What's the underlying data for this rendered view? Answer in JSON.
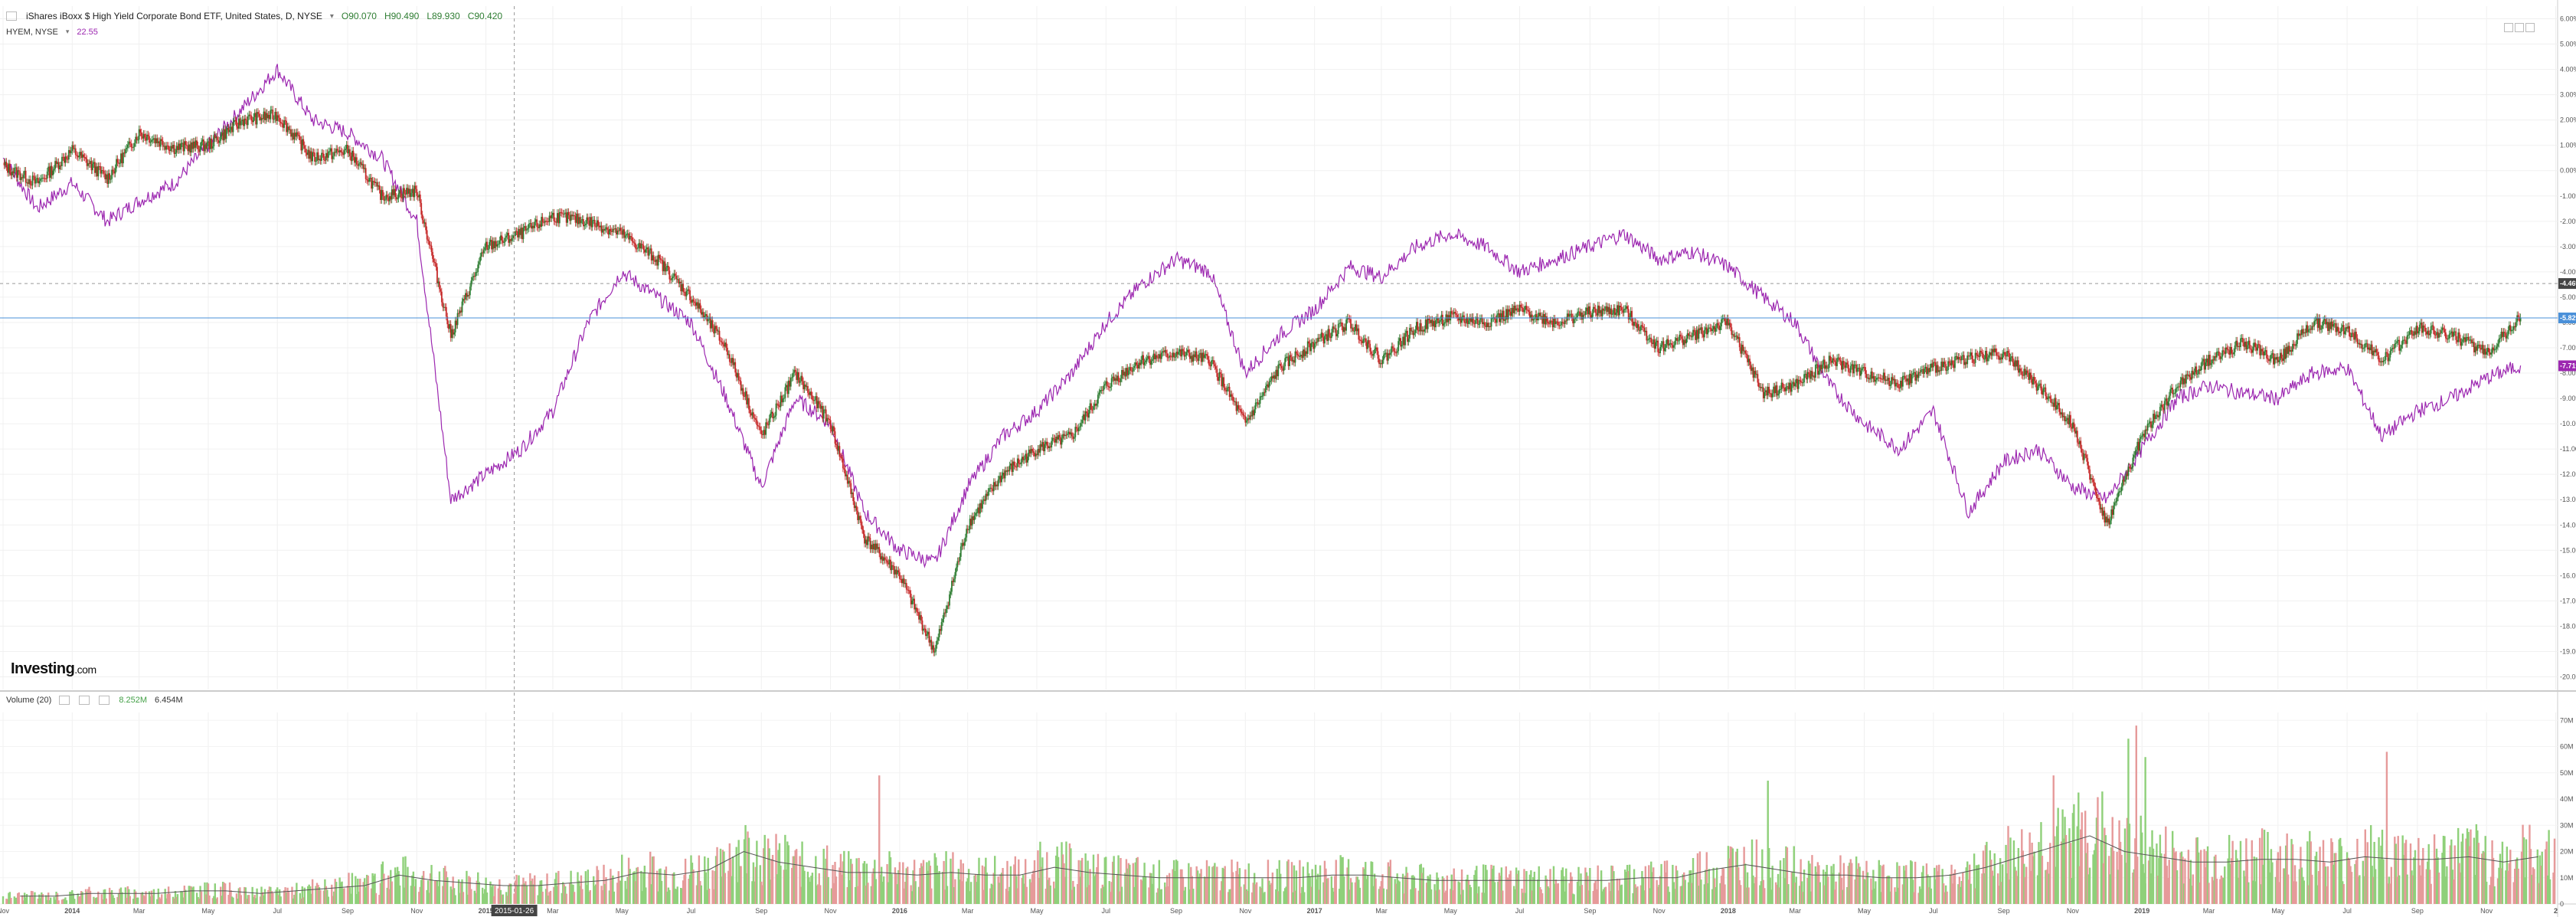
{
  "header": {
    "symbol": "iShares iBoxx $ High Yield Corporate Bond ETF, United States, D, NYSE",
    "open": "O90.070",
    "high": "H90.490",
    "low": "L89.930",
    "close": "C90.420",
    "compare_symbol": "HYEM, NYSE",
    "compare_value": "22.55"
  },
  "volume_legend": {
    "label": "Volume (20)",
    "value1": "8.252M",
    "value2": "6.454M"
  },
  "logo": {
    "main": "Investing",
    "suffix": ".com"
  },
  "crosshair_date": "2015-01-26",
  "price_badges": {
    "crosshair": "-4.46%",
    "blue": "-5.82%",
    "purple": "-7.71%"
  },
  "colors": {
    "up": "#2e7d32",
    "down": "#c62828",
    "compare": "#9c27b0",
    "blue_line": "#4a90d9",
    "vol_up": "#8fd07a",
    "vol_down": "#e69a9a",
    "vol_ma": "#555555"
  },
  "chart_data": {
    "type": "line",
    "title": "iShares iBoxx $ High Yield Corporate Bond ETF, United States, D, NYSE",
    "y_axis_unit": "%",
    "ylim": [
      -20.5,
      6.5
    ],
    "y_ticks": [
      "6.00%",
      "5.00%",
      "4.00%",
      "3.00%",
      "2.00%",
      "1.00%",
      "0.00%",
      "-1.00%",
      "-2.00%",
      "-3.00%",
      "-4.00%",
      "-5.00%",
      "-6.00%",
      "-7.00%",
      "-8.00%",
      "-9.00%",
      "-10.00%",
      "-11.00%",
      "-12.00%",
      "-13.00%",
      "-14.00%",
      "-15.00%",
      "-16.00%",
      "-17.00%",
      "-18.00%",
      "-19.00%",
      "-20.00%"
    ],
    "x_ticks": [
      "Nov",
      "2014",
      "Mar",
      "May",
      "Jul",
      "Sep",
      "Nov",
      "2015",
      "Mar",
      "May",
      "Jul",
      "Sep",
      "Nov",
      "2016",
      "Mar",
      "May",
      "Jul",
      "Sep",
      "Nov",
      "2017",
      "Mar",
      "May",
      "Jul",
      "Sep",
      "Nov",
      "2018",
      "Mar",
      "May",
      "Jul",
      "Sep",
      "Nov",
      "2019",
      "Mar",
      "May",
      "Jul",
      "Sep",
      "Nov",
      "2"
    ],
    "x_range": [
      "2013-11-01",
      "2019-12-31"
    ],
    "series": [
      {
        "name": "HYG",
        "style": "candles",
        "points": [
          [
            "2013-11-01",
            0.2
          ],
          [
            "2013-12-01",
            -0.5
          ],
          [
            "2014-01-01",
            0.8
          ],
          [
            "2014-02-01",
            -0.3
          ],
          [
            "2014-03-01",
            1.5
          ],
          [
            "2014-04-01",
            0.9
          ],
          [
            "2014-05-01",
            1.0
          ],
          [
            "2014-06-01",
            2.0
          ],
          [
            "2014-07-01",
            2.2
          ],
          [
            "2014-08-01",
            0.5
          ],
          [
            "2014-09-01",
            0.8
          ],
          [
            "2014-10-01",
            -1.0
          ],
          [
            "2014-11-01",
            -0.8
          ],
          [
            "2014-12-01",
            -6.5
          ],
          [
            "2015-01-01",
            -3.0
          ],
          [
            "2015-02-01",
            -2.5
          ],
          [
            "2015-03-01",
            -1.8
          ],
          [
            "2015-04-01",
            -2.0
          ],
          [
            "2015-05-01",
            -2.5
          ],
          [
            "2015-06-01",
            -3.5
          ],
          [
            "2015-07-01",
            -5.0
          ],
          [
            "2015-08-01",
            -7.0
          ],
          [
            "2015-09-01",
            -10.5
          ],
          [
            "2015-10-01",
            -8.0
          ],
          [
            "2015-11-01",
            -10.0
          ],
          [
            "2015-12-01",
            -14.5
          ],
          [
            "2016-01-01",
            -16.0
          ],
          [
            "2016-02-01",
            -19.0
          ],
          [
            "2016-03-01",
            -14.0
          ],
          [
            "2016-04-01",
            -12.0
          ],
          [
            "2016-05-01",
            -11.0
          ],
          [
            "2016-06-01",
            -10.5
          ],
          [
            "2016-07-01",
            -8.5
          ],
          [
            "2016-08-01",
            -7.5
          ],
          [
            "2016-09-01",
            -7.2
          ],
          [
            "2016-10-01",
            -7.5
          ],
          [
            "2016-11-01",
            -10.0
          ],
          [
            "2016-12-01",
            -7.8
          ],
          [
            "2017-01-01",
            -6.8
          ],
          [
            "2017-02-01",
            -6.0
          ],
          [
            "2017-03-01",
            -7.5
          ],
          [
            "2017-04-01",
            -6.2
          ],
          [
            "2017-05-01",
            -5.8
          ],
          [
            "2017-06-01",
            -6.0
          ],
          [
            "2017-07-01",
            -5.5
          ],
          [
            "2017-08-01",
            -6.0
          ],
          [
            "2017-09-01",
            -5.6
          ],
          [
            "2017-10-01",
            -5.5
          ],
          [
            "2017-11-01",
            -7.0
          ],
          [
            "2017-12-01",
            -6.5
          ],
          [
            "2018-01-01",
            -6.0
          ],
          [
            "2018-02-01",
            -8.8
          ],
          [
            "2018-03-01",
            -8.5
          ],
          [
            "2018-04-01",
            -7.5
          ],
          [
            "2018-05-01",
            -8.0
          ],
          [
            "2018-06-01",
            -8.4
          ],
          [
            "2018-07-01",
            -7.8
          ],
          [
            "2018-08-01",
            -7.4
          ],
          [
            "2018-09-01",
            -7.2
          ],
          [
            "2018-10-01",
            -8.5
          ],
          [
            "2018-11-01",
            -10.0
          ],
          [
            "2018-12-01",
            -14.0
          ],
          [
            "2019-01-01",
            -10.5
          ],
          [
            "2019-02-01",
            -8.5
          ],
          [
            "2019-03-01",
            -7.5
          ],
          [
            "2019-04-01",
            -6.8
          ],
          [
            "2019-05-01",
            -7.5
          ],
          [
            "2019-06-01",
            -6.0
          ],
          [
            "2019-07-01",
            -6.3
          ],
          [
            "2019-08-01",
            -7.5
          ],
          [
            "2019-09-01",
            -6.2
          ],
          [
            "2019-10-01",
            -6.5
          ],
          [
            "2019-11-01",
            -7.2
          ],
          [
            "2019-12-01",
            -5.8
          ]
        ]
      },
      {
        "name": "HYEM",
        "style": "line",
        "points": [
          [
            "2013-11-01",
            0.5
          ],
          [
            "2013-12-01",
            -1.5
          ],
          [
            "2014-01-01",
            -0.5
          ],
          [
            "2014-02-01",
            -2.0
          ],
          [
            "2014-03-01",
            -1.2
          ],
          [
            "2014-04-01",
            -0.5
          ],
          [
            "2014-05-01",
            1.0
          ],
          [
            "2014-06-01",
            2.5
          ],
          [
            "2014-07-01",
            4.0
          ],
          [
            "2014-08-01",
            2.0
          ],
          [
            "2014-09-01",
            1.5
          ],
          [
            "2014-10-01",
            0.5
          ],
          [
            "2014-11-01",
            -2.0
          ],
          [
            "2014-12-01",
            -13.0
          ],
          [
            "2015-01-01",
            -12.0
          ],
          [
            "2015-02-01",
            -11.0
          ],
          [
            "2015-03-01",
            -9.5
          ],
          [
            "2015-04-01",
            -6.0
          ],
          [
            "2015-05-01",
            -4.0
          ],
          [
            "2015-06-01",
            -5.0
          ],
          [
            "2015-07-01",
            -6.0
          ],
          [
            "2015-08-01",
            -9.0
          ],
          [
            "2015-09-01",
            -12.5
          ],
          [
            "2015-10-01",
            -9.0
          ],
          [
            "2015-11-01",
            -10.0
          ],
          [
            "2015-12-01",
            -13.5
          ],
          [
            "2016-01-01",
            -15.0
          ],
          [
            "2016-02-01",
            -15.5
          ],
          [
            "2016-03-01",
            -12.5
          ],
          [
            "2016-04-01",
            -10.5
          ],
          [
            "2016-05-01",
            -9.5
          ],
          [
            "2016-06-01",
            -8.0
          ],
          [
            "2016-07-01",
            -6.0
          ],
          [
            "2016-08-01",
            -4.5
          ],
          [
            "2016-09-01",
            -3.5
          ],
          [
            "2016-10-01",
            -4.0
          ],
          [
            "2016-11-01",
            -8.0
          ],
          [
            "2016-12-01",
            -6.5
          ],
          [
            "2017-01-01",
            -5.5
          ],
          [
            "2017-02-01",
            -3.8
          ],
          [
            "2017-03-01",
            -4.2
          ],
          [
            "2017-04-01",
            -3.0
          ],
          [
            "2017-05-01",
            -2.5
          ],
          [
            "2017-06-01",
            -3.0
          ],
          [
            "2017-07-01",
            -4.0
          ],
          [
            "2017-08-01",
            -3.5
          ],
          [
            "2017-09-01",
            -3.0
          ],
          [
            "2017-10-01",
            -2.5
          ],
          [
            "2017-11-01",
            -3.5
          ],
          [
            "2017-12-01",
            -3.2
          ],
          [
            "2018-01-01",
            -3.8
          ],
          [
            "2018-02-01",
            -5.0
          ],
          [
            "2018-03-01",
            -6.0
          ],
          [
            "2018-04-01",
            -8.5
          ],
          [
            "2018-05-01",
            -10.0
          ],
          [
            "2018-06-01",
            -11.0
          ],
          [
            "2018-07-01",
            -9.5
          ],
          [
            "2018-08-01",
            -13.5
          ],
          [
            "2018-09-01",
            -11.5
          ],
          [
            "2018-10-01",
            -11.0
          ],
          [
            "2018-11-01",
            -12.5
          ],
          [
            "2018-12-01",
            -13.0
          ],
          [
            "2019-01-01",
            -11.0
          ],
          [
            "2019-02-01",
            -9.0
          ],
          [
            "2019-03-01",
            -8.5
          ],
          [
            "2019-04-01",
            -8.8
          ],
          [
            "2019-05-01",
            -9.0
          ],
          [
            "2019-06-01",
            -8.0
          ],
          [
            "2019-07-01",
            -7.8
          ],
          [
            "2019-08-01",
            -10.5
          ],
          [
            "2019-09-01",
            -9.5
          ],
          [
            "2019-10-01",
            -9.0
          ],
          [
            "2019-11-01",
            -8.2
          ],
          [
            "2019-12-01",
            -7.7
          ]
        ]
      }
    ],
    "volume": {
      "label": "Volume (20)",
      "y_ticks": [
        "70M",
        "60M",
        "50M",
        "40M",
        "30M",
        "20M",
        "10M",
        "0"
      ],
      "ylim": [
        0,
        73
      ],
      "unit": "M",
      "monthly_avg": [
        3,
        3,
        4,
        4,
        4,
        5,
        5,
        4,
        5,
        6,
        7,
        11,
        9,
        8,
        7,
        7,
        8,
        9,
        12,
        11,
        13,
        20,
        16,
        14,
        12,
        12,
        11,
        12,
        11,
        11,
        14,
        12,
        11,
        10,
        10,
        10,
        10,
        10,
        11,
        11,
        10,
        9,
        9,
        9,
        9,
        9,
        9,
        10,
        10,
        13,
        15,
        13,
        11,
        11,
        10,
        10,
        11,
        14,
        18,
        22,
        26,
        20,
        18,
        16,
        16,
        17,
        17,
        16,
        18,
        17,
        17,
        18,
        16,
        18
      ],
      "notable_spikes": [
        [
          "2015-12-14",
          49
        ],
        [
          "2018-02-05",
          47
        ],
        [
          "2018-10-15",
          49
        ],
        [
          "2018-12-20",
          63
        ],
        [
          "2018-12-27",
          68
        ],
        [
          "2019-01-04",
          56
        ],
        [
          "2019-08-05",
          58
        ]
      ]
    }
  }
}
